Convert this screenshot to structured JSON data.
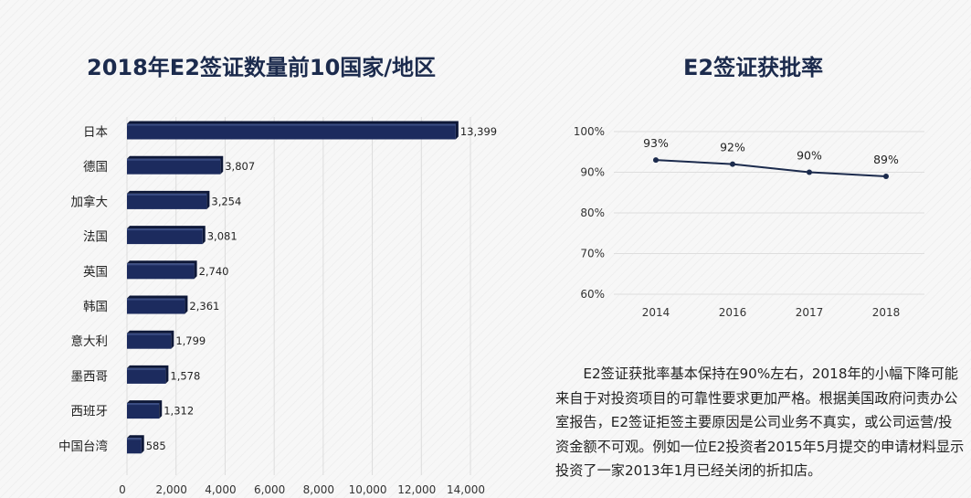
{
  "chart_data": [
    {
      "type": "bar",
      "orientation": "horizontal",
      "title": "2018年E2签证数量前10国家/地区",
      "categories": [
        "日本",
        "德国",
        "加拿大",
        "法国",
        "英国",
        "韩国",
        "意大利",
        "墨西哥",
        "西班牙",
        "中国台湾"
      ],
      "values": [
        13399,
        3807,
        3254,
        3081,
        2740,
        2361,
        1799,
        1578,
        1312,
        585
      ],
      "value_labels": [
        "13,399",
        "3,807",
        "3,254",
        "3,081",
        "2,740",
        "2,361",
        "1,799",
        "1,578",
        "1,312",
        "585"
      ],
      "xlim": [
        0,
        14000
      ],
      "x_ticks": [
        0,
        2000,
        4000,
        6000,
        8000,
        10000,
        12000,
        14000
      ],
      "x_tick_labels": [
        "0",
        "2,000",
        "4,000",
        "6,000",
        "8,000",
        "10,000",
        "12,000",
        "14,000"
      ],
      "grid": true,
      "bar_color": "#1c2b5e"
    },
    {
      "type": "line",
      "title": "E2签证获批率",
      "x": [
        "2014",
        "2016",
        "2017",
        "2018"
      ],
      "values": [
        93,
        92,
        90,
        89
      ],
      "value_labels": [
        "93%",
        "92%",
        "90%",
        "89%"
      ],
      "ylim": [
        60,
        100
      ],
      "y_ticks": [
        60,
        70,
        80,
        90,
        100
      ],
      "y_tick_labels": [
        "60%",
        "70%",
        "80%",
        "90%",
        "100%"
      ],
      "grid": true,
      "line_color": "#1c2b4d"
    }
  ],
  "description": "E2签证获批率基本保持在90%左右，2018年的小幅下降可能来自于对投资项目的可靠性要求更加严格。根据美国政府问责办公室报告，E2签证拒签主要原因是公司业务不真实，或公司运营/投资金额不可观。例如一位E2投资者2015年5月提交的申请材料显示投资了一家2013年1月已经关闭的折扣店。"
}
